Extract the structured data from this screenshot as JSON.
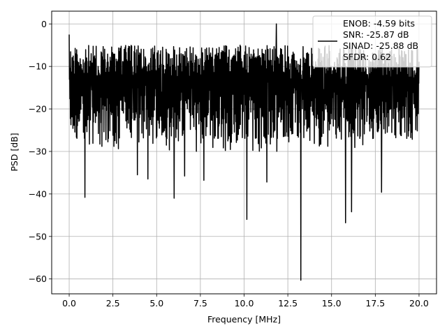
{
  "chart_data": {
    "type": "line",
    "title": "",
    "xlabel": "Frequency [MHz]",
    "ylabel": "PSD [dB]",
    "xlim": [
      -1.0,
      21.0
    ],
    "ylim": [
      -63.5,
      3.0
    ],
    "xticks": [
      0.0,
      2.5,
      5.0,
      7.5,
      10.0,
      12.5,
      15.0,
      17.5,
      20.0
    ],
    "xtick_labels": [
      "0.0",
      "2.5",
      "5.0",
      "7.5",
      "10.0",
      "12.5",
      "15.0",
      "17.5",
      "20.0"
    ],
    "yticks": [
      0,
      -10,
      -20,
      -30,
      -40,
      -50,
      -60
    ],
    "ytick_labels": [
      "0",
      "−10",
      "−20",
      "−30",
      "−40",
      "−50",
      "−60"
    ],
    "grid": true,
    "legend_position": "top-right",
    "series": [
      {
        "label_lines": [
          "ENOB: -4.59 bits",
          "SNR: -25.87 dB",
          "SINAD: -25.88 dB",
          "SFDR: 0.62"
        ],
        "color": "#000000",
        "x_range": [
          0.0,
          20.0
        ],
        "typical_top_db": -5,
        "typical_bottom_db": -27,
        "peaks": [
          {
            "x": 0.0,
            "y": -2.5
          },
          {
            "x": 11.85,
            "y": 0.0
          }
        ],
        "dips": [
          {
            "x": 0.9,
            "y": -40.8
          },
          {
            "x": 6.0,
            "y": -41.0
          },
          {
            "x": 10.15,
            "y": -46.0
          },
          {
            "x": 13.25,
            "y": -60.3
          },
          {
            "x": 15.8,
            "y": -46.8
          },
          {
            "x": 16.15,
            "y": -44.2
          },
          {
            "x": 17.85,
            "y": -39.6
          },
          {
            "x": 4.5,
            "y": -36.5
          },
          {
            "x": 7.7,
            "y": -36.8
          },
          {
            "x": 11.3,
            "y": -37.2
          },
          {
            "x": 3.9,
            "y": -35.5
          },
          {
            "x": 6.6,
            "y": -35.8
          }
        ]
      }
    ]
  }
}
